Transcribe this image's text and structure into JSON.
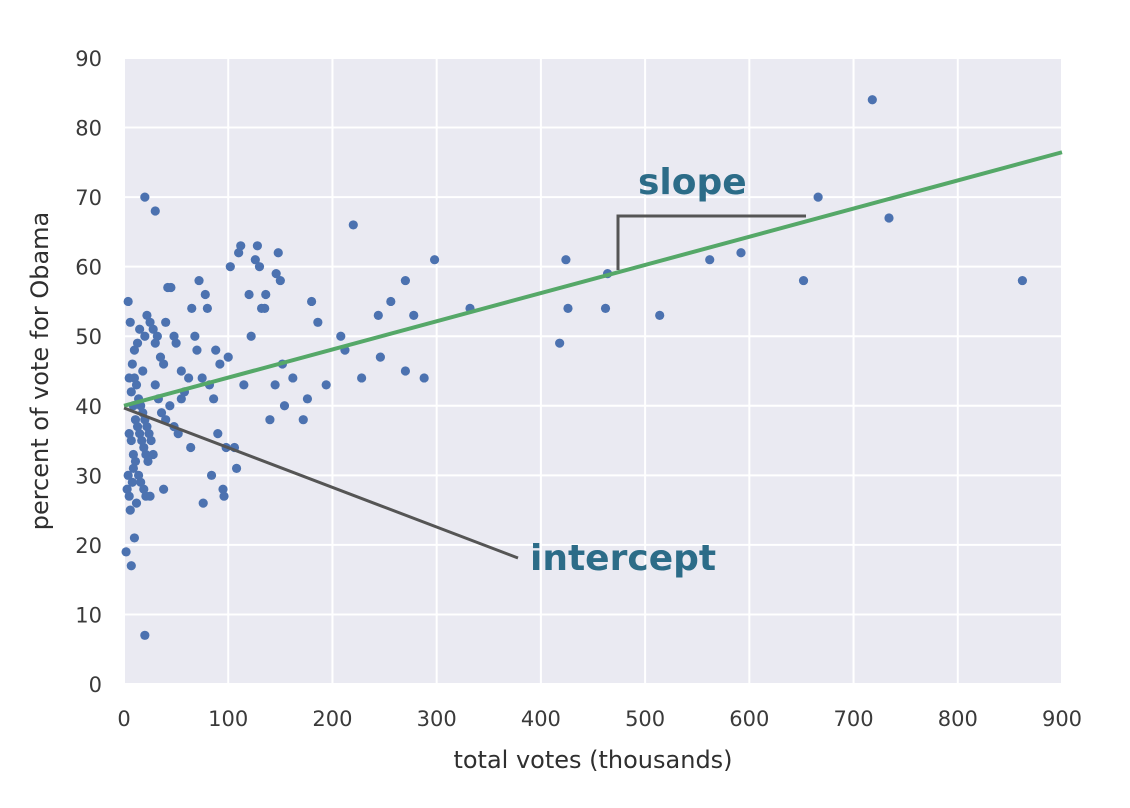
{
  "chart_data": {
    "type": "scatter",
    "xlabel": "total votes (thousands)",
    "ylabel": "percent of vote for Obama",
    "xlim": [
      0,
      900
    ],
    "ylim": [
      0,
      90
    ],
    "x_ticks": [
      0,
      100,
      200,
      300,
      400,
      500,
      600,
      700,
      800,
      900
    ],
    "y_ticks": [
      0,
      10,
      20,
      30,
      40,
      50,
      60,
      70,
      80,
      90
    ],
    "grid": true,
    "colors": {
      "background": "#eaeaf2",
      "grid": "#ffffff",
      "points": "#4c72b0",
      "fit_line": "#55a868",
      "annotation_line": "#555555",
      "annotation_text": "#2c6c88"
    },
    "fit_line": {
      "intercept": 40.0,
      "slope": 0.0405
    },
    "annotations": [
      {
        "text": "slope"
      },
      {
        "text": "intercept"
      }
    ],
    "points": [
      [
        2,
        19
      ],
      [
        3,
        28
      ],
      [
        4,
        30
      ],
      [
        5,
        27
      ],
      [
        6,
        25
      ],
      [
        7,
        17
      ],
      [
        8,
        29
      ],
      [
        9,
        31
      ],
      [
        10,
        21
      ],
      [
        12,
        26
      ],
      [
        4,
        55
      ],
      [
        6,
        52
      ],
      [
        10,
        48
      ],
      [
        13,
        49
      ],
      [
        15,
        51
      ],
      [
        18,
        45
      ],
      [
        20,
        50
      ],
      [
        22,
        53
      ],
      [
        25,
        52
      ],
      [
        28,
        51
      ],
      [
        30,
        49
      ],
      [
        32,
        50
      ],
      [
        35,
        47
      ],
      [
        38,
        46
      ],
      [
        40,
        52
      ],
      [
        42,
        57
      ],
      [
        45,
        57
      ],
      [
        48,
        50
      ],
      [
        50,
        49
      ],
      [
        55,
        45
      ],
      [
        5,
        44
      ],
      [
        7,
        42
      ],
      [
        9,
        40
      ],
      [
        11,
        38
      ],
      [
        13,
        37
      ],
      [
        15,
        36
      ],
      [
        17,
        35
      ],
      [
        19,
        34
      ],
      [
        21,
        33
      ],
      [
        23,
        32
      ],
      [
        8,
        46
      ],
      [
        10,
        44
      ],
      [
        12,
        43
      ],
      [
        14,
        41
      ],
      [
        16,
        40
      ],
      [
        18,
        39
      ],
      [
        20,
        38
      ],
      [
        22,
        37
      ],
      [
        24,
        36
      ],
      [
        26,
        35
      ],
      [
        5,
        36
      ],
      [
        7,
        35
      ],
      [
        9,
        33
      ],
      [
        11,
        32
      ],
      [
        14,
        30
      ],
      [
        16,
        29
      ],
      [
        19,
        28
      ],
      [
        21,
        27
      ],
      [
        25,
        27
      ],
      [
        28,
        33
      ],
      [
        30,
        43
      ],
      [
        33,
        41
      ],
      [
        36,
        39
      ],
      [
        40,
        38
      ],
      [
        44,
        40
      ],
      [
        48,
        37
      ],
      [
        52,
        36
      ],
      [
        55,
        41
      ],
      [
        58,
        42
      ],
      [
        62,
        44
      ],
      [
        20,
        70
      ],
      [
        30,
        68
      ],
      [
        20,
        7
      ],
      [
        38,
        28
      ],
      [
        64,
        34
      ],
      [
        65,
        54
      ],
      [
        68,
        50
      ],
      [
        70,
        48
      ],
      [
        72,
        58
      ],
      [
        75,
        44
      ],
      [
        76,
        26
      ],
      [
        78,
        56
      ],
      [
        80,
        54
      ],
      [
        82,
        43
      ],
      [
        84,
        30
      ],
      [
        86,
        41
      ],
      [
        88,
        48
      ],
      [
        90,
        36
      ],
      [
        92,
        46
      ],
      [
        95,
        28
      ],
      [
        96,
        27
      ],
      [
        98,
        34
      ],
      [
        100,
        47
      ],
      [
        102,
        60
      ],
      [
        106,
        34
      ],
      [
        108,
        31
      ],
      [
        110,
        62
      ],
      [
        112,
        63
      ],
      [
        115,
        43
      ],
      [
        120,
        56
      ],
      [
        122,
        50
      ],
      [
        126,
        61
      ],
      [
        128,
        63
      ],
      [
        130,
        60
      ],
      [
        132,
        54
      ],
      [
        135,
        54
      ],
      [
        136,
        56
      ],
      [
        140,
        38
      ],
      [
        145,
        43
      ],
      [
        146,
        59
      ],
      [
        148,
        62
      ],
      [
        150,
        58
      ],
      [
        152,
        46
      ],
      [
        154,
        40
      ],
      [
        162,
        44
      ],
      [
        172,
        38
      ],
      [
        176,
        41
      ],
      [
        180,
        55
      ],
      [
        186,
        52
      ],
      [
        194,
        43
      ],
      [
        208,
        50
      ],
      [
        212,
        48
      ],
      [
        220,
        66
      ],
      [
        228,
        44
      ],
      [
        244,
        53
      ],
      [
        246,
        47
      ],
      [
        256,
        55
      ],
      [
        270,
        58
      ],
      [
        270,
        45
      ],
      [
        278,
        53
      ],
      [
        288,
        44
      ],
      [
        298,
        61
      ],
      [
        332,
        54
      ],
      [
        418,
        49
      ],
      [
        424,
        61
      ],
      [
        426,
        54
      ],
      [
        462,
        54
      ],
      [
        464,
        59
      ],
      [
        514,
        53
      ],
      [
        562,
        61
      ],
      [
        592,
        62
      ],
      [
        652,
        58
      ],
      [
        666,
        70
      ],
      [
        718,
        84
      ],
      [
        734,
        67
      ],
      [
        862,
        58
      ]
    ]
  }
}
